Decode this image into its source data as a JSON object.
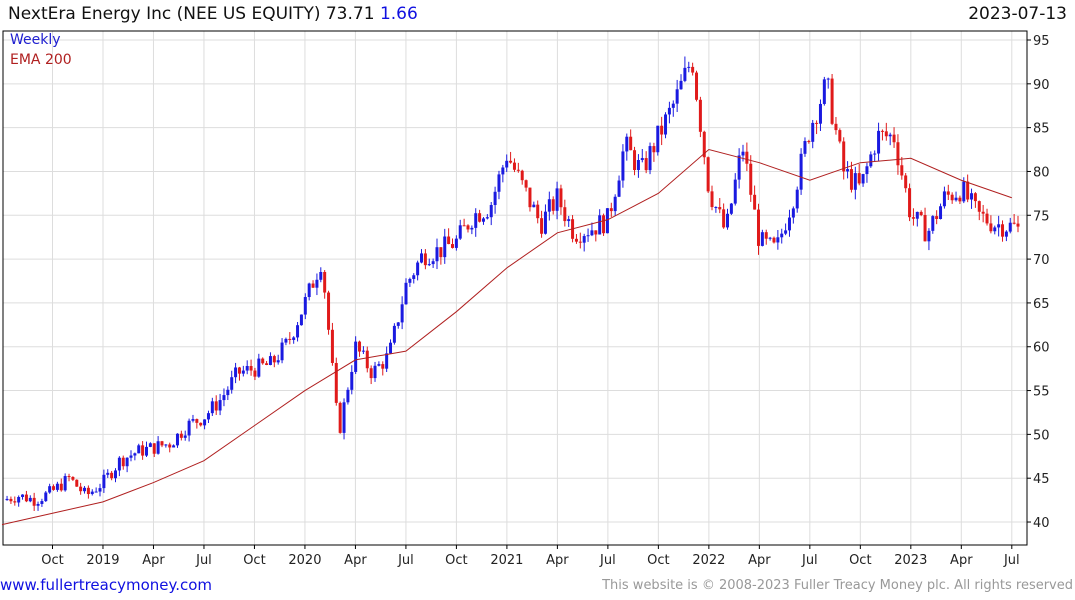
{
  "header": {
    "title": "NextEra Energy Inc (NEE US EQUITY) 73.71",
    "change": "1.66",
    "date": "2023-07-13"
  },
  "legend": {
    "period": "Weekly",
    "indicator": "EMA 200"
  },
  "footer": {
    "site": "www.fullertreacymoney.com",
    "copyright": "This website is © 2008-2023 Fuller Treacy Money plc. All rights reserved"
  },
  "colors": {
    "up": "#1a1ae0",
    "down": "#e01a1a",
    "ema": "#b02020",
    "grid": "#dddddd"
  },
  "chart_data": {
    "type": "candlestick",
    "title": "NextEra Energy Inc (NEE US EQUITY)",
    "ylim": [
      38,
      96
    ],
    "y_ticks": [
      40,
      45,
      50,
      55,
      60,
      65,
      70,
      75,
      80,
      85,
      90,
      95
    ],
    "x_ticks": [
      {
        "label": "Oct",
        "m": 3
      },
      {
        "label": "2019",
        "m": 6
      },
      {
        "label": "Apr",
        "m": 9
      },
      {
        "label": "Jul",
        "m": 12
      },
      {
        "label": "Oct",
        "m": 15
      },
      {
        "label": "2020",
        "m": 18
      },
      {
        "label": "Apr",
        "m": 21
      },
      {
        "label": "Jul",
        "m": 24
      },
      {
        "label": "Oct",
        "m": 27
      },
      {
        "label": "2021",
        "m": 30
      },
      {
        "label": "Apr",
        "m": 33
      },
      {
        "label": "Jul",
        "m": 36
      },
      {
        "label": "Oct",
        "m": 39
      },
      {
        "label": "2022",
        "m": 42
      },
      {
        "label": "Apr",
        "m": 45
      },
      {
        "label": "Jul",
        "m": 48
      },
      {
        "label": "Oct",
        "m": 51
      },
      {
        "label": "2023",
        "m": 54
      },
      {
        "label": "Apr",
        "m": 57
      },
      {
        "label": "Jul",
        "m": 60
      }
    ],
    "monthly_close_from_2018_07": [
      42.5,
      43,
      42.5,
      43.5,
      45,
      43,
      44.5,
      47,
      48,
      48.5,
      49,
      51,
      52,
      54,
      57,
      57.5,
      58,
      60.5,
      65,
      70,
      50,
      60,
      57,
      59,
      67,
      70.5,
      71,
      72,
      75,
      76,
      82,
      78,
      74,
      77,
      73,
      73.5,
      74.5,
      83,
      80,
      84,
      88,
      93,
      78,
      73,
      83,
      72,
      71,
      77,
      85,
      90,
      80,
      78,
      84,
      84,
      75,
      73,
      77,
      78,
      75,
      74,
      73.71
    ],
    "ema200_quarterly_from_2018_07": [
      39.7,
      41,
      42.3,
      44.5,
      47,
      51,
      55,
      58.5,
      59.5,
      64,
      69,
      73,
      74.5,
      77.5,
      82.5,
      81,
      79,
      81,
      81.5,
      79,
      77
    ]
  }
}
